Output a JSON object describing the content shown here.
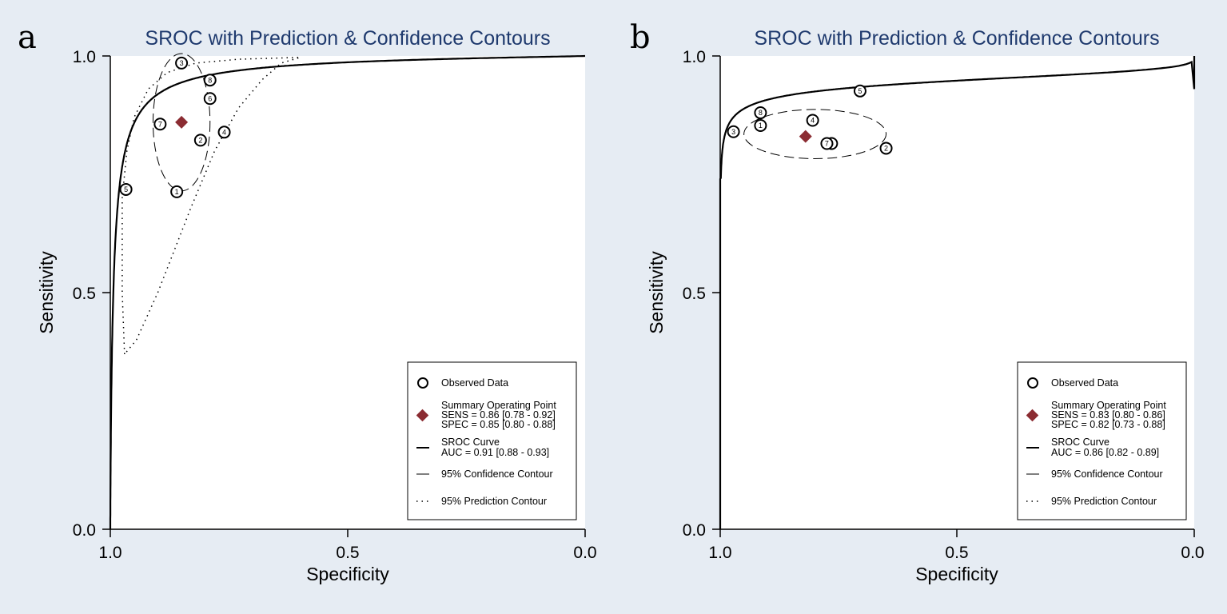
{
  "figure": {
    "outer_background": "#e6ecf3",
    "plot_background": "#ffffff",
    "summary_color": "#8b2c32",
    "title_color": "#1f3a6e"
  },
  "chart_data": [
    {
      "type": "scatter",
      "panel_label": "a",
      "title": "SROC with Prediction & Confidence Contours",
      "xlabel": "Specificity",
      "ylabel": "Sensitivity",
      "xlim": [
        1.0,
        0.0
      ],
      "ylim": [
        0.0,
        1.0
      ],
      "x_ticks": [
        "1.0",
        "0.5",
        "0.0"
      ],
      "y_ticks": [
        "0.0",
        "0.5",
        "1.0"
      ],
      "sroc_auc": 0.91,
      "studies": [
        {
          "label": "1",
          "spec": 0.86,
          "sens": 0.713
        },
        {
          "label": "2",
          "spec": 0.81,
          "sens": 0.822
        },
        {
          "label": "3",
          "spec": 0.85,
          "sens": 0.985
        },
        {
          "label": "4",
          "spec": 0.76,
          "sens": 0.839
        },
        {
          "label": "5",
          "spec": 0.967,
          "sens": 0.718
        },
        {
          "label": "6",
          "spec": 0.79,
          "sens": 0.91
        },
        {
          "label": "7",
          "spec": 0.895,
          "sens": 0.856
        },
        {
          "label": "8",
          "spec": 0.79,
          "sens": 0.949
        }
      ],
      "summary_point": {
        "spec": 0.85,
        "sens": 0.86
      },
      "confidence_contour": {
        "spec": 0.85,
        "sens": 0.86,
        "rx": 0.06,
        "ry": 0.145
      },
      "prediction_contour_left": [
        [
          0.97,
          0.37
        ],
        [
          0.975,
          0.5
        ],
        [
          0.975,
          0.7
        ],
        [
          0.965,
          0.8
        ],
        [
          0.95,
          0.87
        ],
        [
          0.92,
          0.93
        ],
        [
          0.88,
          0.965
        ],
        [
          0.82,
          0.985
        ],
        [
          0.73,
          0.993
        ],
        [
          0.6,
          0.997
        ]
      ],
      "prediction_contour_right": [
        [
          0.97,
          0.37
        ],
        [
          0.945,
          0.4
        ],
        [
          0.9,
          0.5
        ],
        [
          0.83,
          0.68
        ],
        [
          0.78,
          0.8
        ],
        [
          0.73,
          0.89
        ],
        [
          0.68,
          0.95
        ],
        [
          0.64,
          0.985
        ],
        [
          0.6,
          0.997
        ]
      ],
      "legend": {
        "observed": "Observed Data",
        "summary": "Summary Operating Point",
        "sens": "SENS = 0.86 [0.78 - 0.92]",
        "spec": "SPEC = 0.85 [0.80 - 0.88]",
        "curve": "SROC Curve",
        "auc": "AUC = 0.91 [0.88 - 0.93]",
        "confidence": "95% Confidence Contour",
        "prediction": "95% Prediction Contour"
      }
    },
    {
      "type": "scatter",
      "panel_label": "b",
      "title": "SROC with Prediction & Confidence Contours",
      "xlabel": "Specificity",
      "ylabel": "Sensitivity",
      "xlim": [
        1.0,
        0.0
      ],
      "ylim": [
        0.0,
        1.0
      ],
      "x_ticks": [
        "1.0",
        "0.5",
        "0.0"
      ],
      "y_ticks": [
        "0.0",
        "0.5",
        "1.0"
      ],
      "sroc_auc": 0.86,
      "studies": [
        {
          "label": "1",
          "spec": 0.915,
          "sens": 0.853
        },
        {
          "label": "2",
          "spec": 0.65,
          "sens": 0.805
        },
        {
          "label": "3",
          "spec": 0.972,
          "sens": 0.84
        },
        {
          "label": "4",
          "spec": 0.805,
          "sens": 0.864
        },
        {
          "label": "5",
          "spec": 0.705,
          "sens": 0.926
        },
        {
          "label": "6",
          "spec": 0.765,
          "sens": 0.815
        },
        {
          "label": "7",
          "spec": 0.775,
          "sens": 0.815
        },
        {
          "label": "8",
          "spec": 0.915,
          "sens": 0.88
        }
      ],
      "summary_point": {
        "spec": 0.82,
        "sens": 0.83
      },
      "confidence_contour": {
        "spec": 0.8,
        "sens": 0.835,
        "rx": 0.15,
        "ry": 0.052
      },
      "legend": {
        "observed": "Observed Data",
        "summary": "Summary Operating Point",
        "sens": "SENS = 0.83 [0.80 - 0.86]",
        "spec": "SPEC = 0.82 [0.73 - 0.88]",
        "curve": "SROC Curve",
        "auc": "AUC = 0.86 [0.82 - 0.89]",
        "confidence": "95% Confidence Contour",
        "prediction": "95% Prediction Contour"
      }
    }
  ]
}
